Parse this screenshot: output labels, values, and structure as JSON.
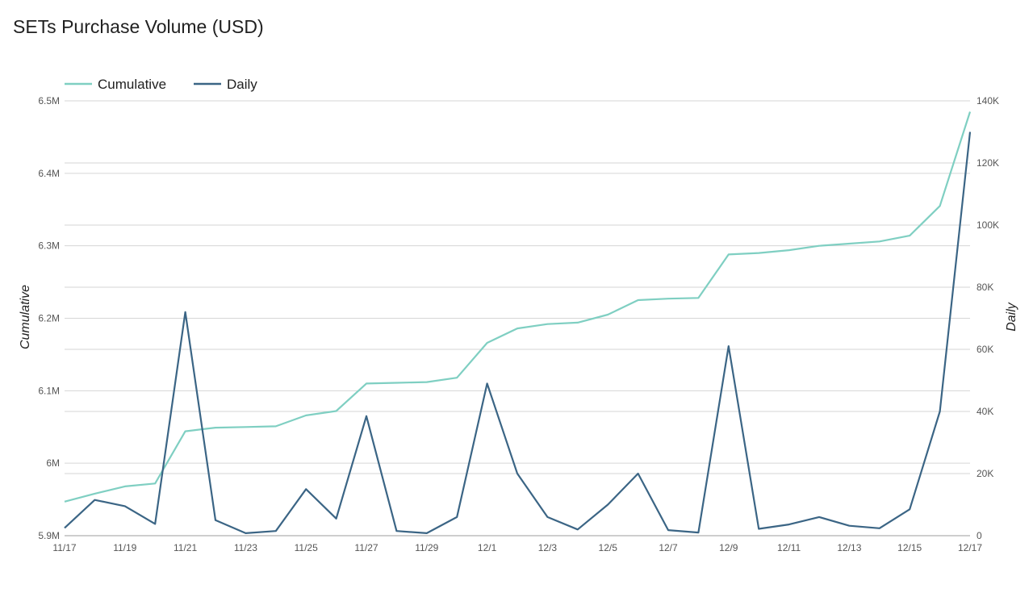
{
  "title": "SETs Purchase Volume (USD)",
  "chart_data": {
    "type": "line",
    "title": "SETs Purchase Volume (USD)",
    "x": [
      "11/17",
      "11/18",
      "11/19",
      "11/20",
      "11/21",
      "11/22",
      "11/23",
      "11/24",
      "11/25",
      "11/26",
      "11/27",
      "11/28",
      "11/29",
      "11/30",
      "12/1",
      "12/2",
      "12/3",
      "12/4",
      "12/5",
      "12/6",
      "12/7",
      "12/8",
      "12/9",
      "12/10",
      "12/11",
      "12/12",
      "12/13",
      "12/14",
      "12/15",
      "12/16",
      "12/17"
    ],
    "x_tick_labels": [
      "11/17",
      "11/19",
      "11/21",
      "11/23",
      "11/25",
      "11/27",
      "11/29",
      "12/1",
      "12/3",
      "12/5",
      "12/7",
      "12/9",
      "12/11",
      "12/13",
      "12/15",
      "12/17"
    ],
    "y_left": {
      "label": "Cumulative",
      "ylim": [
        5900000,
        6500000
      ],
      "ticks": [
        5900000,
        6000000,
        6100000,
        6200000,
        6300000,
        6400000,
        6500000
      ],
      "tick_labels": [
        "5.9M",
        "6M",
        "6.1M",
        "6.2M",
        "6.3M",
        "6.4M",
        "6.5M"
      ]
    },
    "y_right": {
      "label": "Daily",
      "ylim": [
        0,
        140000
      ],
      "ticks": [
        0,
        20000,
        40000,
        60000,
        80000,
        100000,
        120000,
        140000
      ],
      "tick_labels": [
        "0",
        "20K",
        "40K",
        "60K",
        "80K",
        "100K",
        "120K",
        "140K"
      ]
    },
    "series": [
      {
        "name": "Cumulative",
        "axis": "left",
        "color": "#7fcfc2",
        "values": [
          5947000,
          5958000,
          5968000,
          5972000,
          6044000,
          6049000,
          6050000,
          6051000,
          6066000,
          6072000,
          6110000,
          6111000,
          6112000,
          6118000,
          6166000,
          6186000,
          6192000,
          6194000,
          6205000,
          6225000,
          6227000,
          6228000,
          6288000,
          6290000,
          6294000,
          6300000,
          6303000,
          6306000,
          6314000,
          6355000,
          6485000
        ]
      },
      {
        "name": "Daily",
        "axis": "right",
        "color": "#3b6585",
        "values": [
          2500,
          11500,
          9500,
          3800,
          72000,
          5000,
          800,
          1500,
          15000,
          5500,
          38500,
          1500,
          800,
          6000,
          49000,
          20000,
          6000,
          2000,
          10000,
          20000,
          1800,
          1000,
          61000,
          2200,
          3600,
          6000,
          3200,
          2400,
          8500,
          40000,
          130000
        ]
      }
    ],
    "legend": "top-left",
    "grid": true
  }
}
